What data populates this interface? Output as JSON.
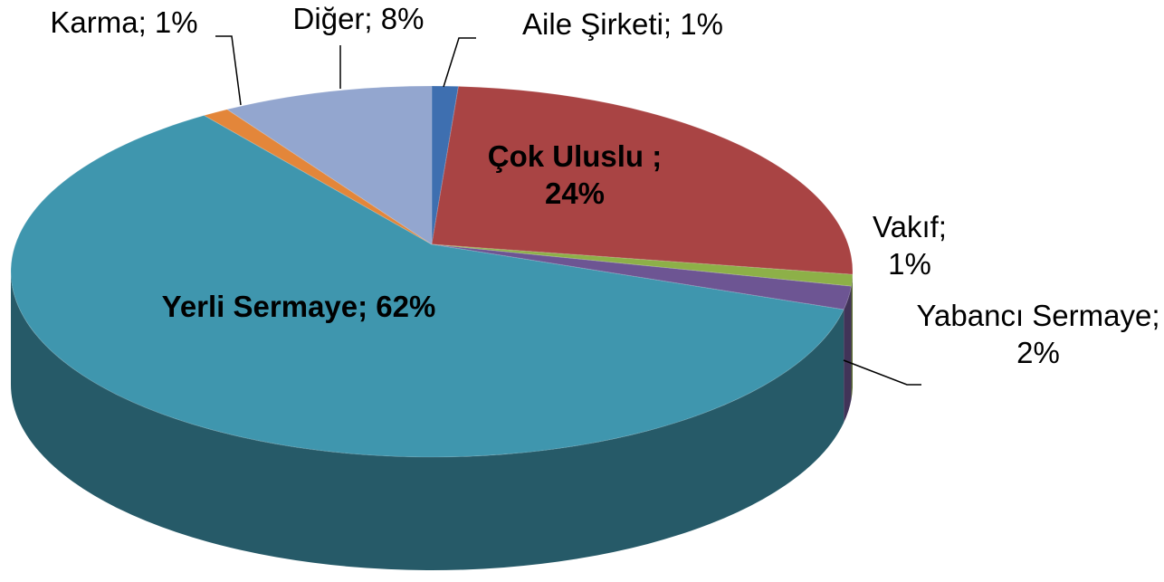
{
  "chart_data": {
    "type": "pie3d",
    "categories": [
      "Aile Şirketi;",
      "Çok Uluslu ;",
      "Vakıf;",
      "Yabancı Sermaye;",
      "Yerli Sermaye;",
      "Karma;",
      "Diğer;"
    ],
    "values": [
      1,
      24,
      1,
      2,
      62,
      1,
      8
    ],
    "value_labels": [
      "1%",
      "24%",
      "1%",
      "2%",
      "62%",
      "1%",
      "8%"
    ],
    "colors": [
      "#3e6fb0",
      "#a94444",
      "#8db048",
      "#6d5593",
      "#3f96ae",
      "#e3863a",
      "#93a6cf"
    ]
  }
}
